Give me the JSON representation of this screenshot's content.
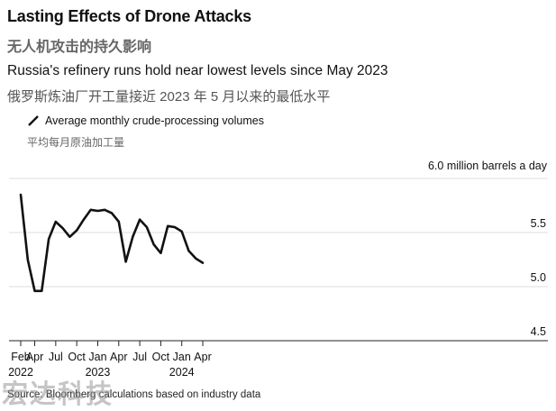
{
  "title": "Lasting Effects of Drone Attacks",
  "title_zh": "无人机攻击的持久影响",
  "subtitle": "Russia's refinery runs hold near lowest levels since May 2023",
  "subtitle_zh": "俄罗斯炼油厂开工量接近 2023 年 5 月以来的最低水平",
  "source": "Source: Bloomberg calculations based on industry data",
  "watermark": "宏达科技",
  "colors": {
    "line": "#111111",
    "grid": "#dddddd",
    "axis": "#222222"
  },
  "chart_data": {
    "type": "line",
    "unit_label": "6.0 million barrels a day",
    "ylim": [
      4.5,
      6.0
    ],
    "yticks": [
      {
        "value": 6.0,
        "label": ""
      },
      {
        "value": 5.5,
        "label": "5.5"
      },
      {
        "value": 5.0,
        "label": "5.0"
      },
      {
        "value": 4.5,
        "label": "4.5"
      }
    ],
    "grid": true,
    "legend": {
      "position": "top-left",
      "label": "Average monthly crude-processing volumes",
      "label_zh": "平均每月原油加工量"
    },
    "x_start": "2022-02",
    "xticks": [
      {
        "month": "2022-02",
        "label": "Feb",
        "year": "2022"
      },
      {
        "month": "2022-04",
        "label": "Apr",
        "year": ""
      },
      {
        "month": "2022-07",
        "label": "Jul",
        "year": ""
      },
      {
        "month": "2022-10",
        "label": "Oct",
        "year": ""
      },
      {
        "month": "2023-01",
        "label": "Jan",
        "year": "2023"
      },
      {
        "month": "2023-04",
        "label": "Apr",
        "year": ""
      },
      {
        "month": "2023-07",
        "label": "Jul",
        "year": ""
      },
      {
        "month": "2023-10",
        "label": "Oct",
        "year": ""
      },
      {
        "month": "2024-01",
        "label": "Jan",
        "year": "2024"
      },
      {
        "month": "2024-04",
        "label": "Apr",
        "year": ""
      }
    ],
    "series": [
      {
        "name": "Average monthly crude-processing volumes",
        "x": [
          "2022-02",
          "2022-03",
          "2022-04",
          "2022-05",
          "2022-06",
          "2022-07",
          "2022-08",
          "2022-09",
          "2022-10",
          "2022-11",
          "2022-12",
          "2023-01",
          "2023-02",
          "2023-03",
          "2023-04",
          "2023-05",
          "2023-06",
          "2023-07",
          "2023-08",
          "2023-09",
          "2023-10",
          "2023-11",
          "2023-12",
          "2024-01",
          "2024-02",
          "2024-03",
          "2024-04"
        ],
        "values": [
          5.85,
          5.25,
          4.96,
          4.96,
          5.44,
          5.6,
          5.54,
          5.46,
          5.52,
          5.62,
          5.71,
          5.7,
          5.71,
          5.68,
          5.6,
          5.23,
          5.46,
          5.62,
          5.55,
          5.39,
          5.31,
          5.56,
          5.55,
          5.51,
          5.33,
          5.26,
          5.22
        ]
      }
    ]
  }
}
